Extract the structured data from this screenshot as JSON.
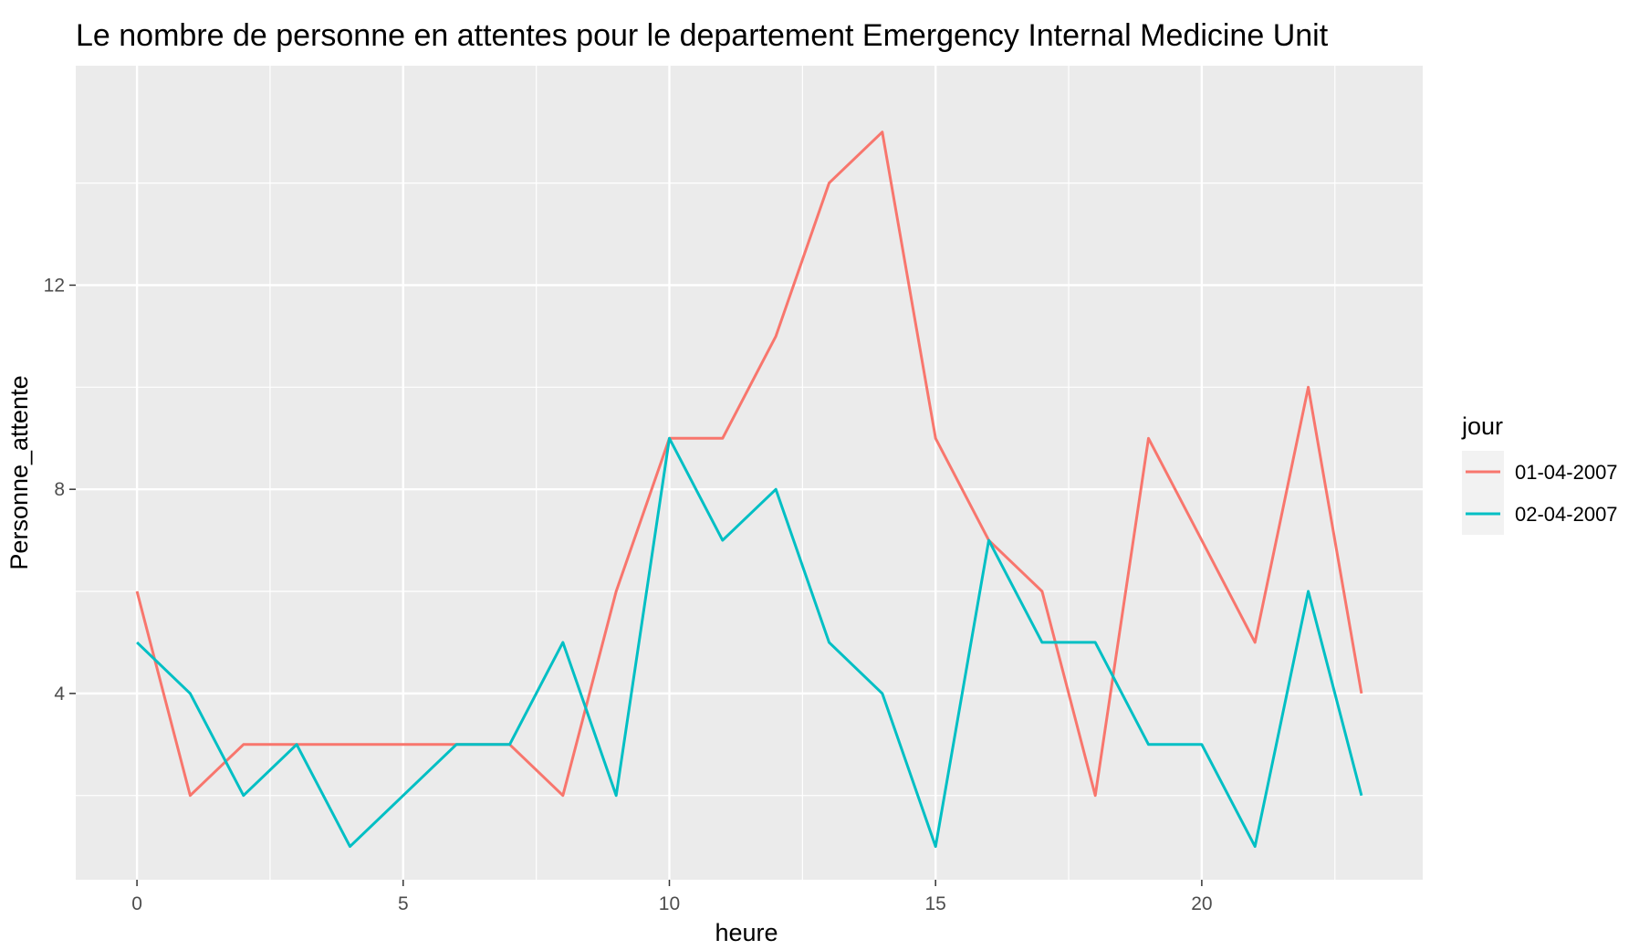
{
  "chart_data": {
    "type": "line",
    "title": "Le nombre de personne en attentes pour le departement Emergency Internal Medicine Unit",
    "xlabel": "heure",
    "ylabel": "Personne_attente",
    "xlim": [
      -1.15,
      24.15
    ],
    "ylim": [
      0.35,
      16.3
    ],
    "x_ticks": [
      0,
      5,
      10,
      15,
      20
    ],
    "y_ticks": [
      4,
      8,
      12
    ],
    "grid": true,
    "legend": {
      "title": "jour",
      "position": "right"
    },
    "x": [
      0,
      1,
      2,
      3,
      4,
      5,
      6,
      7,
      8,
      9,
      10,
      11,
      12,
      13,
      14,
      15,
      16,
      17,
      18,
      19,
      20,
      21,
      22,
      23
    ],
    "series": [
      {
        "name": "01-04-2007",
        "color": "#F8766D",
        "values": [
          6,
          2,
          3,
          3,
          3,
          3,
          3,
          3,
          2,
          6,
          9,
          9,
          11,
          14,
          15,
          9,
          7,
          6,
          2,
          9,
          7,
          5,
          10,
          4
        ]
      },
      {
        "name": "02-04-2007",
        "color": "#00BFC4",
        "values": [
          5,
          4,
          2,
          3,
          1,
          2,
          3,
          3,
          5,
          2,
          9,
          7,
          8,
          5,
          4,
          1,
          7,
          5,
          5,
          3,
          3,
          1,
          6,
          2
        ]
      }
    ]
  }
}
